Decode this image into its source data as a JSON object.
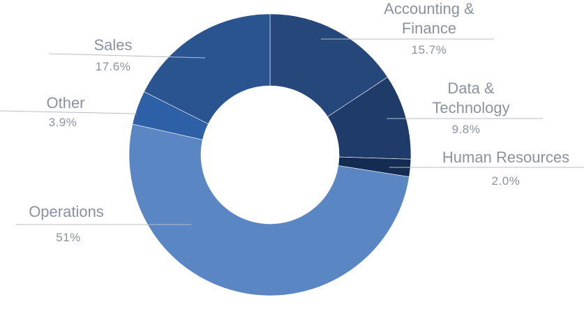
{
  "chart_data": {
    "type": "pie",
    "variant": "donut",
    "title": "",
    "slices": [
      {
        "label": [
          "Accounting &",
          "Finance"
        ],
        "value": 15.7,
        "display": "15.7%",
        "color": "#264779"
      },
      {
        "label": [
          "Data &",
          "Technology"
        ],
        "value": 9.8,
        "display": "9.8%",
        "color": "#1e3b69"
      },
      {
        "label": [
          "Human Resources"
        ],
        "value": 2.0,
        "display": "2.0%",
        "color": "#152c52"
      },
      {
        "label": [
          "Operations"
        ],
        "value": 51,
        "display": "51%",
        "color": "#5a87c3"
      },
      {
        "label": [
          "Other"
        ],
        "value": 3.9,
        "display": "3.9%",
        "color": "#2d60a6"
      },
      {
        "label": [
          "Sales"
        ],
        "value": 17.6,
        "display": "17.6%",
        "color": "#2a5490"
      }
    ],
    "legend": "none",
    "label_color": "#8a92a0"
  }
}
